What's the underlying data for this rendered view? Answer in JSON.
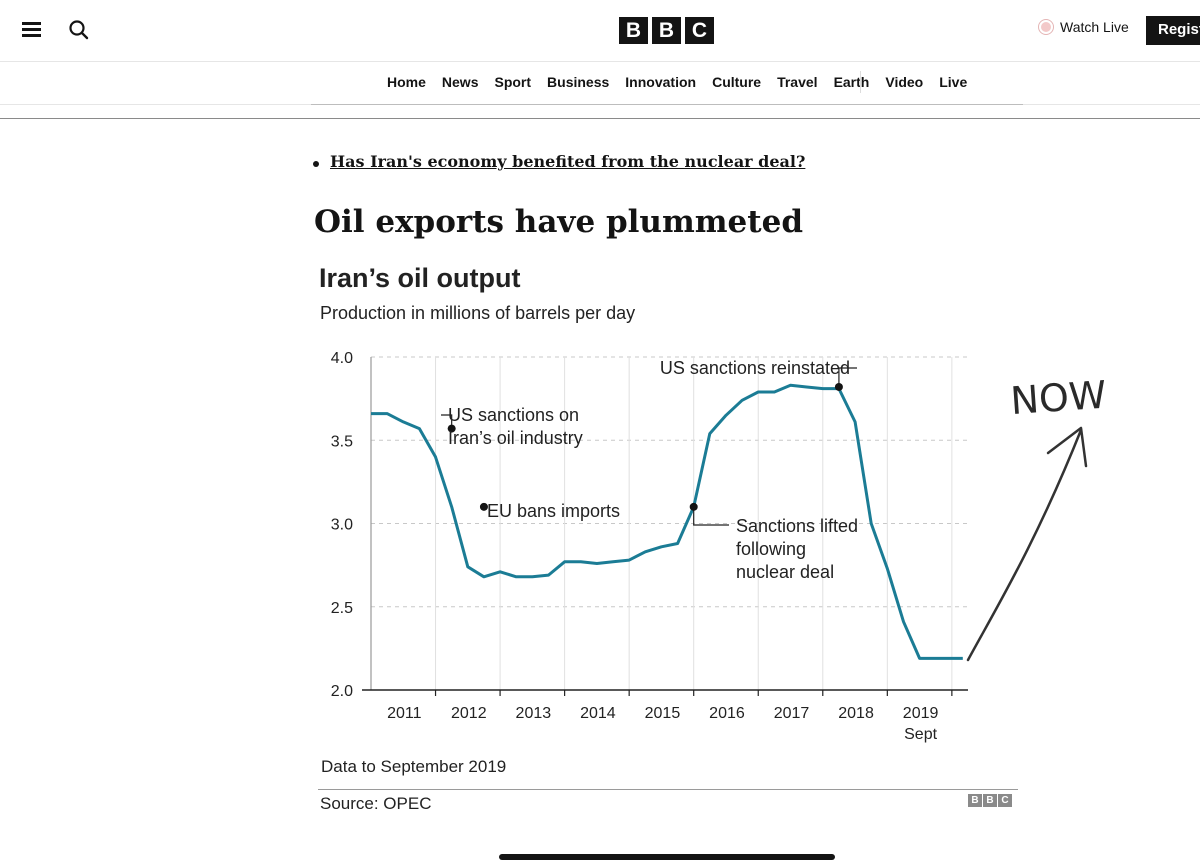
{
  "header": {
    "logo": [
      "B",
      "B",
      "C"
    ],
    "watch_live": "Watch Live",
    "register": "Register",
    "icons": {
      "menu": "menu-icon",
      "search": "search-icon",
      "live": "live-dot-icon"
    }
  },
  "nav": [
    "Home",
    "News",
    "Sport",
    "Business",
    "Innovation",
    "Culture",
    "Travel",
    "Earth",
    "Video",
    "Live"
  ],
  "article": {
    "link": "Has Iran's economy benefited from the nuclear deal?",
    "headline": "Oil exports have plummeted"
  },
  "chart": {
    "title": "Iran’s oil output",
    "subtitle": "Production in millions of barrels per day",
    "note": "Data to September 2019",
    "source": "Source: OPEC",
    "logo": [
      "B",
      "B",
      "C"
    ],
    "handwritten": "NOW"
  },
  "colors": {
    "line": "#1b7c95",
    "grid": "#c8c8c8",
    "text": "#222222"
  },
  "chart_data": {
    "type": "line",
    "ylim": [
      2.0,
      4.0
    ],
    "yticks": [
      2.0,
      2.5,
      3.0,
      3.5,
      4.0
    ],
    "ytick_labels": [
      "2.0",
      "2.5",
      "3.0",
      "3.5",
      "4.0"
    ],
    "xlim": [
      2010.5,
      2019.75
    ],
    "xticks": [
      2011,
      2012,
      2013,
      2014,
      2015,
      2016,
      2017,
      2018,
      2019
    ],
    "xtick_labels": [
      "2011",
      "2012",
      "2013",
      "2014",
      "2015",
      "2016",
      "2017",
      "2018",
      "2019\nSept"
    ],
    "grid": true,
    "series": [
      {
        "x": [
          2010.5,
          2010.75,
          2011.0,
          2011.25,
          2011.5,
          2011.75,
          2012.0,
          2012.25,
          2012.5,
          2012.75,
          2013.0,
          2013.25,
          2013.5,
          2013.75,
          2014.0,
          2014.25,
          2014.5,
          2014.75,
          2015.0,
          2015.25,
          2015.5,
          2015.75,
          2016.0,
          2016.25,
          2016.5,
          2016.75,
          2017.0,
          2017.25,
          2017.5,
          2017.75,
          2018.0,
          2018.25,
          2018.5,
          2018.75,
          2019.0,
          2019.25,
          2019.5,
          2019.67
        ],
        "y": [
          3.66,
          3.66,
          3.61,
          3.57,
          3.4,
          3.1,
          2.74,
          2.68,
          2.71,
          2.68,
          2.68,
          2.69,
          2.77,
          2.77,
          2.76,
          2.77,
          2.78,
          2.83,
          2.86,
          2.88,
          3.1,
          3.54,
          3.65,
          3.74,
          3.79,
          3.79,
          3.83,
          3.82,
          3.81,
          3.81,
          3.61,
          3.0,
          2.73,
          2.41,
          2.19,
          2.19,
          2.19,
          2.19
        ]
      }
    ],
    "annotations": [
      {
        "text": "US sanctions on\nIran’s oil industry",
        "x": 2011.75,
        "y": 3.57
      },
      {
        "text": "EU bans imports",
        "x": 2012.25,
        "y": 3.1
      },
      {
        "text": "Sanctions lifted\nfollowing\nnuclear deal",
        "x": 2015.5,
        "y": 3.1
      },
      {
        "text": "US sanctions reinstated",
        "x": 2017.75,
        "y": 3.82
      }
    ]
  }
}
